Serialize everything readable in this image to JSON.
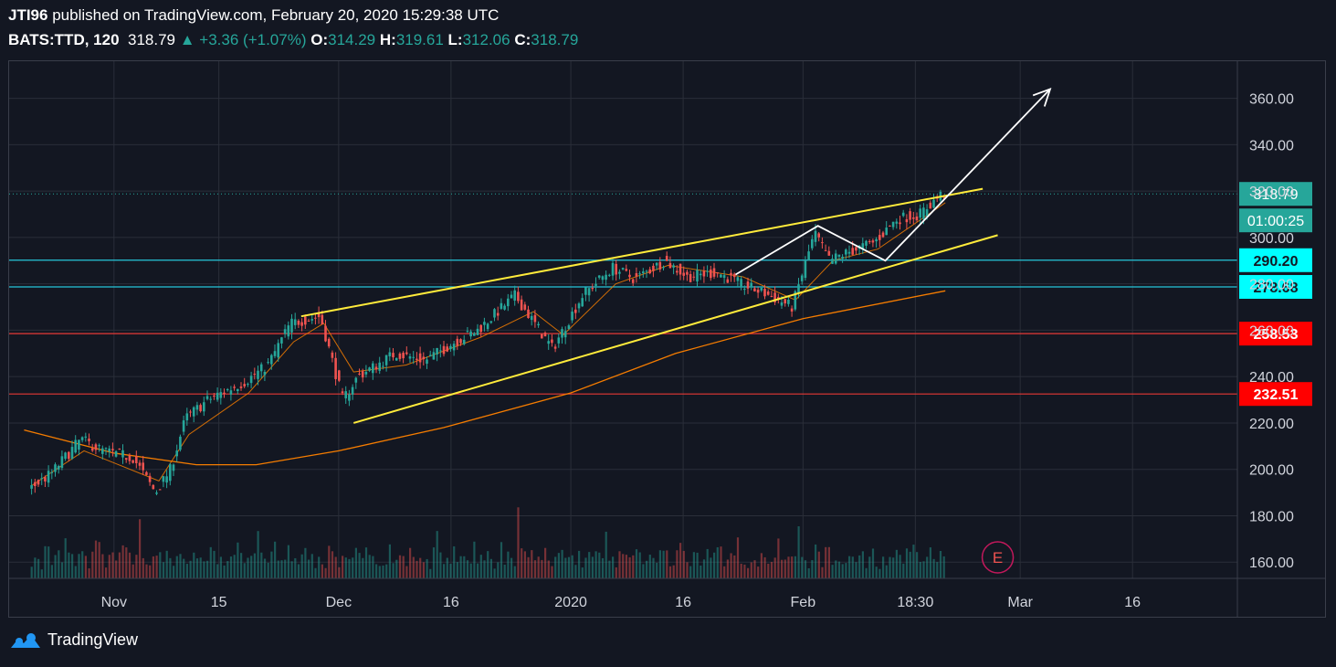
{
  "header": {
    "publisher": "JTI96",
    "published_text": "published on TradingView.com, February 20, 2020 15:29:38 UTC",
    "symbol": "BATS:TTD, 120",
    "last": "318.79",
    "change": "+3.36 (+1.07%)",
    "o_label": "O:",
    "o_value": "314.29",
    "h_label": "H:",
    "h_value": "319.61",
    "l_label": "L:",
    "l_value": "312.06",
    "c_label": "C:",
    "c_value": "318.79"
  },
  "footer": {
    "brand": "TradingView"
  },
  "colors": {
    "background": "#131722",
    "up": "#26a69a",
    "down": "#ef5350",
    "trendline": "#ffeb3b",
    "support": "#26c6da",
    "resistance": "#e53935",
    "ma_long": "#f57c00",
    "ma_short": "#f57c00",
    "projection": "#ffffff"
  },
  "chart_data": {
    "type": "candlestick",
    "symbol": "BATS:TTD",
    "timeframe": "120",
    "x_tick_labels": [
      "Nov",
      "15",
      "Dec",
      "16",
      "2020",
      "16",
      "Feb",
      "18:30",
      "Mar",
      "16"
    ],
    "y_ticks": [
      160,
      180,
      200,
      220,
      240,
      260,
      280,
      300,
      320,
      340,
      360
    ],
    "y_tick_labels": [
      "160.00",
      "180.00",
      "200.00",
      "220.00",
      "240.00",
      "260.00",
      "280.00",
      "300.00",
      "320.00",
      "340.00",
      "360.00"
    ],
    "ylim": [
      153,
      376
    ],
    "price_path": [
      [
        "2019-10-21",
        191
      ],
      [
        "2019-10-24",
        198
      ],
      [
        "2019-10-28",
        213
      ],
      [
        "2019-10-31",
        208
      ],
      [
        "2019-11-04",
        205
      ],
      [
        "2019-11-07",
        190
      ],
      [
        "2019-11-09",
        200
      ],
      [
        "2019-11-11",
        222
      ],
      [
        "2019-11-14",
        230
      ],
      [
        "2019-11-19",
        238
      ],
      [
        "2019-11-22",
        245
      ],
      [
        "2019-11-25",
        263
      ],
      [
        "2019-11-29",
        266
      ],
      [
        "2019-12-02",
        230
      ],
      [
        "2019-12-04",
        240
      ],
      [
        "2019-12-09",
        250
      ],
      [
        "2019-12-13",
        247
      ],
      [
        "2019-12-17",
        255
      ],
      [
        "2019-12-20",
        260
      ],
      [
        "2019-12-25",
        275
      ],
      [
        "2019-12-30",
        252
      ],
      [
        "2020-01-03",
        275
      ],
      [
        "2020-01-07",
        287
      ],
      [
        "2020-01-10",
        282
      ],
      [
        "2020-01-14",
        290
      ],
      [
        "2020-01-17",
        283
      ],
      [
        "2020-01-21",
        285
      ],
      [
        "2020-01-24",
        280
      ],
      [
        "2020-01-28",
        275
      ],
      [
        "2020-01-31",
        270
      ],
      [
        "2020-02-03",
        302
      ],
      [
        "2020-02-05",
        290
      ],
      [
        "2020-02-07",
        293
      ],
      [
        "2020-02-11",
        298
      ],
      [
        "2020-02-14",
        308
      ],
      [
        "2020-02-17",
        310
      ],
      [
        "2020-02-20",
        318.79
      ]
    ],
    "moving_average_short": [
      [
        "2019-10-21",
        193
      ],
      [
        "2019-10-28",
        208
      ],
      [
        "2019-11-07",
        195
      ],
      [
        "2019-11-11",
        215
      ],
      [
        "2019-11-19",
        233
      ],
      [
        "2019-11-25",
        255
      ],
      [
        "2019-11-29",
        263
      ],
      [
        "2019-12-03",
        242
      ],
      [
        "2019-12-10",
        245
      ],
      [
        "2019-12-20",
        257
      ],
      [
        "2019-12-27",
        268
      ],
      [
        "2019-12-31",
        258
      ],
      [
        "2020-01-07",
        280
      ],
      [
        "2020-01-14",
        288
      ],
      [
        "2020-01-24",
        283
      ],
      [
        "2020-01-31",
        273
      ],
      [
        "2020-02-05",
        290
      ],
      [
        "2020-02-11",
        295
      ],
      [
        "2020-02-20",
        315
      ]
    ],
    "moving_average_long": [
      [
        "2019-10-20",
        217
      ],
      [
        "2019-11-01",
        207
      ],
      [
        "2019-11-12",
        202
      ],
      [
        "2019-11-20",
        202
      ],
      [
        "2019-12-01",
        208
      ],
      [
        "2019-12-15",
        218
      ],
      [
        "2020-01-01",
        233
      ],
      [
        "2020-01-15",
        250
      ],
      [
        "2020-02-01",
        265
      ],
      [
        "2020-02-20",
        277
      ]
    ],
    "volume_relative": [
      0.25,
      0.2,
      0.3,
      0.15,
      0.35,
      0.4,
      0.2,
      0.25,
      0.3,
      0.2,
      0.45,
      0.3,
      0.25,
      0.2,
      0.35,
      0.3,
      0.25,
      0.2,
      0.3,
      0.5,
      0.35,
      0.25,
      0.2,
      0.3,
      0.25,
      0.2,
      0.3,
      0.4,
      0.3,
      0.25,
      0.2,
      0.35,
      0.6,
      0.3,
      0.25,
      0.2,
      0.3,
      0.35,
      0.25,
      0.2,
      0.3,
      0.2,
      0.25,
      0.35,
      0.3,
      0.25,
      0.2,
      0.3,
      0.25,
      0.4,
      0.3,
      0.25,
      0.2,
      0.3,
      0.35,
      0.25,
      0.3,
      0.2,
      0.25,
      0.3,
      0.35,
      0.45,
      0.3,
      0.25,
      0.2,
      0.3,
      0.25,
      0.55,
      0.3,
      0.25,
      0.2,
      0.3,
      0.35,
      0.25,
      0.2,
      0.3,
      0.4,
      0.25,
      0.3,
      0.2,
      0.25,
      0.3,
      0.35,
      0.25,
      0.2,
      0.3,
      0.25,
      0.2,
      0.3,
      0.45,
      0.25,
      0.2,
      0.3,
      0.25,
      0.35,
      0.2,
      0.3,
      0.25,
      0.2,
      0.3,
      0.25,
      0.35,
      0.3,
      0.2,
      0.25,
      0.3,
      0.4,
      0.25,
      0.2,
      0.3,
      0.25,
      0.2,
      0.3,
      0.35,
      0.25,
      0.2,
      0.3,
      0.25,
      0.2,
      0.3,
      0.55,
      0.25,
      0.3,
      0.2,
      0.25,
      0.3,
      0.2,
      0.25,
      0.35,
      0.3,
      0.25,
      0.45,
      0.3,
      0.25,
      0.2,
      0.3,
      0.25,
      0.2,
      0.3,
      0.35,
      0.25,
      0.3,
      0.2,
      0.25,
      0.7,
      0.3,
      0.25,
      0.2,
      0.3,
      0.25,
      0.35,
      0.2,
      0.3,
      0.25,
      0.2,
      0.3,
      0.25,
      0.35,
      0.3,
      0.25
    ],
    "horizontal_levels": [
      {
        "value": 290.2,
        "label": "290.20",
        "color": "#26c6da"
      },
      {
        "value": 278.68,
        "label": "278.68",
        "color": "#26c6da"
      },
      {
        "value": 258.53,
        "label": "258.53",
        "color": "#e53935"
      },
      {
        "value": 232.51,
        "label": "232.51",
        "color": "#e53935"
      }
    ],
    "last_price": {
      "value": 318.79,
      "label": "318.79",
      "countdown": "01:00:25"
    },
    "trendlines": [
      {
        "name": "channel-upper",
        "from": [
          "2019-11-26",
          266
        ],
        "to": [
          "2020-02-25",
          321
        ]
      },
      {
        "name": "channel-lower",
        "from": [
          "2019-12-03",
          220
        ],
        "to": [
          "2020-02-27",
          301
        ]
      }
    ],
    "projection_path": [
      [
        "2020-01-23",
        284
      ],
      [
        "2020-02-03",
        305
      ],
      [
        "2020-02-12",
        290
      ],
      [
        "2020-03-05",
        364
      ]
    ],
    "earnings_marker": {
      "date": "2020-02-27",
      "label": "E"
    }
  }
}
